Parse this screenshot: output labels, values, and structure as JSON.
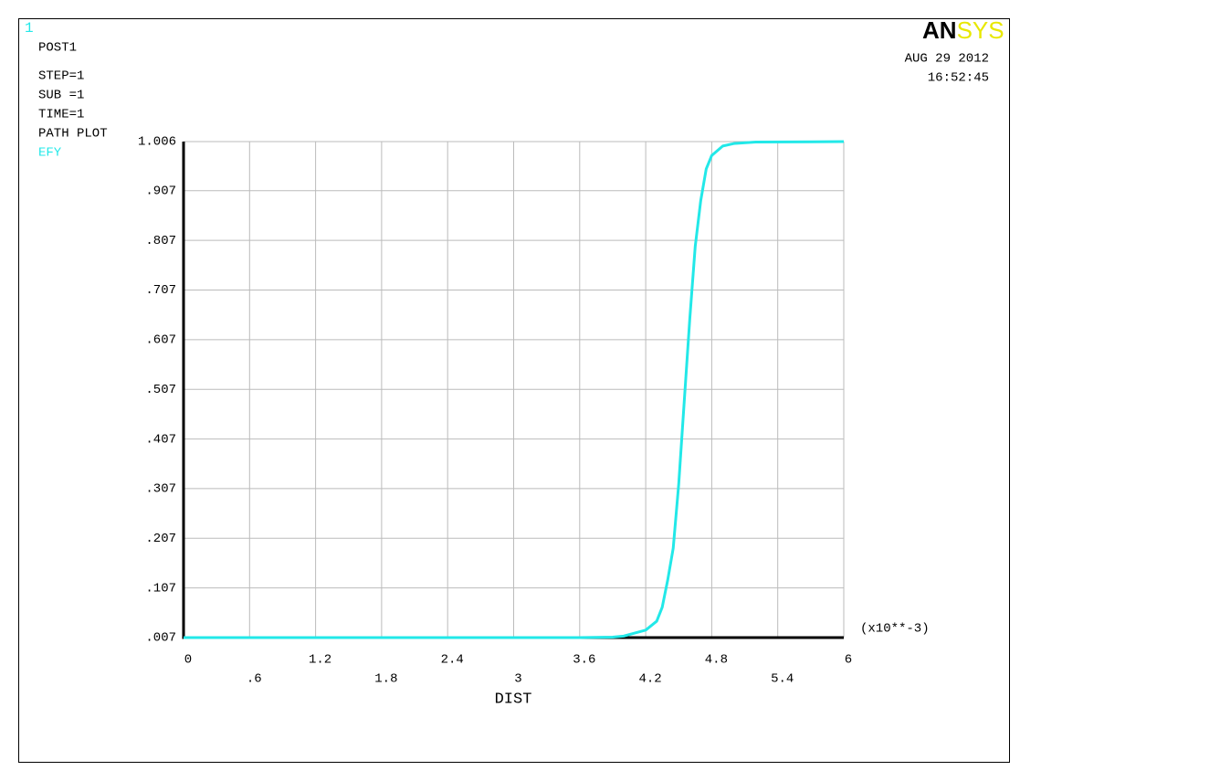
{
  "chart_data": {
    "type": "line",
    "window_number": "1",
    "info_lines": [
      "POST1",
      "STEP=1",
      "SUB =1",
      "TIME=1",
      "PATH PLOT"
    ],
    "logo": {
      "part1": "AN",
      "part2": "SYS"
    },
    "date": "AUG 29 2012",
    "time": "16:52:45",
    "x_label": "DIST",
    "x_multiplier": "(x10**-3)",
    "x": [
      0,
      1,
      2,
      3,
      3.6,
      3.9,
      4.0,
      4.1,
      4.2,
      4.3,
      4.35,
      4.4,
      4.45,
      4.5,
      4.55,
      4.6,
      4.65,
      4.7,
      4.75,
      4.8,
      4.9,
      5.0,
      5.2,
      6
    ],
    "series": [
      {
        "name": "EFY",
        "color": "#22e8e8",
        "values": [
          0.007,
          0.007,
          0.007,
          0.007,
          0.007,
          0.008,
          0.01,
          0.016,
          0.022,
          0.04,
          0.068,
          0.123,
          0.187,
          0.316,
          0.482,
          0.647,
          0.795,
          0.887,
          0.951,
          0.978,
          0.997,
          1.002,
          1.005,
          1.006
        ]
      }
    ],
    "xlim": [
      0,
      6
    ],
    "ylim": [
      0.007,
      1.006
    ],
    "xticks": [
      0,
      {
        "value": 0.6,
        "label": ".6"
      },
      1.2,
      1.8,
      2.4,
      3,
      3.6,
      4.2,
      4.8,
      5.4,
      6
    ],
    "yticks": [
      {
        "value": 0.007,
        "label": ".007"
      },
      {
        "value": 0.107,
        "label": ".107"
      },
      {
        "value": 0.207,
        "label": ".207"
      },
      {
        "value": 0.307,
        "label": ".307"
      },
      {
        "value": 0.407,
        "label": ".407"
      },
      {
        "value": 0.507,
        "label": ".507"
      },
      {
        "value": 0.607,
        "label": ".607"
      },
      {
        "value": 0.707,
        "label": ".707"
      },
      {
        "value": 0.807,
        "label": ".807"
      },
      {
        "value": 0.907,
        "label": ".907"
      },
      1.006
    ],
    "grid": true
  }
}
